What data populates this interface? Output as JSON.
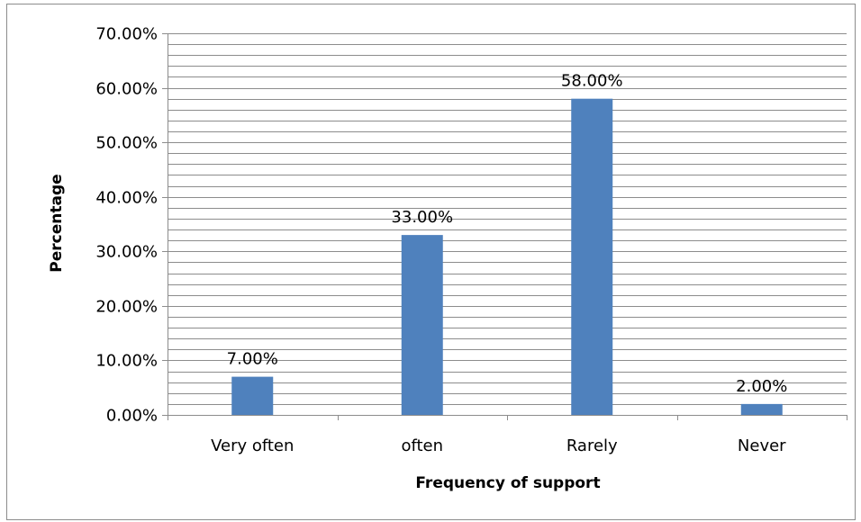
{
  "chart_data": {
    "type": "bar",
    "categories": [
      "Very often",
      "often",
      "Rarely",
      "Never"
    ],
    "values": [
      7.0,
      33.0,
      58.0,
      2.0
    ],
    "data_labels": [
      "7.00%",
      "33.00%",
      "58.00%",
      "2.00%"
    ],
    "ylim": [
      0,
      70
    ],
    "y_tick_values": [
      0,
      10,
      20,
      30,
      40,
      50,
      60,
      70
    ],
    "y_tick_labels": [
      "0.00%",
      "10.00%",
      "20.00%",
      "30.00%",
      "40.00%",
      "50.00%",
      "60.00%",
      "70.00%"
    ],
    "minor_gridline_step": 2,
    "xlabel": "Frequency of support",
    "ylabel": "Percentage",
    "grid": true,
    "legend": "none",
    "bar_color": "#4F81BD",
    "gridline_color": "#8c8c8c"
  }
}
